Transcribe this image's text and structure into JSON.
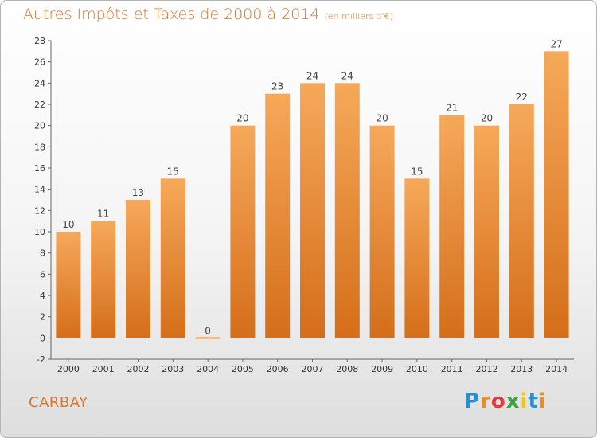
{
  "title": "Autres Impôts et Taxes de 2000 à 2014",
  "subtitle": "(en milliers d'€)",
  "place_name": "CARBAY",
  "logo": {
    "letters": [
      "P",
      "r",
      "o",
      "x",
      "i",
      "t",
      "i"
    ],
    "colors": [
      "#2a8fd0",
      "#f08a1c",
      "#e23b3b",
      "#3aa53a",
      "#f2c318",
      "#2a8fd0",
      "#f08a1c"
    ]
  },
  "colors": {
    "bar_top": "#f6a95a",
    "bar_bottom": "#d46e1a",
    "accent": "#d9762a"
  },
  "chart_data": {
    "type": "bar",
    "categories": [
      "2000",
      "2001",
      "2002",
      "2003",
      "2004",
      "2005",
      "2006",
      "2007",
      "2008",
      "2009",
      "2010",
      "2011",
      "2012",
      "2013",
      "2014"
    ],
    "values": [
      10,
      11,
      13,
      15,
      0,
      20,
      23,
      24,
      24,
      20,
      15,
      21,
      20,
      22,
      27
    ],
    "title": "Autres Impôts et Taxes de 2000 à 2014",
    "subtitle": "(en milliers d'€)",
    "xlabel": "",
    "ylabel": "",
    "ylim": [
      -2,
      28
    ],
    "yticks": [
      -2,
      0,
      2,
      4,
      6,
      8,
      10,
      12,
      14,
      16,
      18,
      20,
      22,
      24,
      26,
      28
    ],
    "grid": false,
    "data_labels": true
  }
}
